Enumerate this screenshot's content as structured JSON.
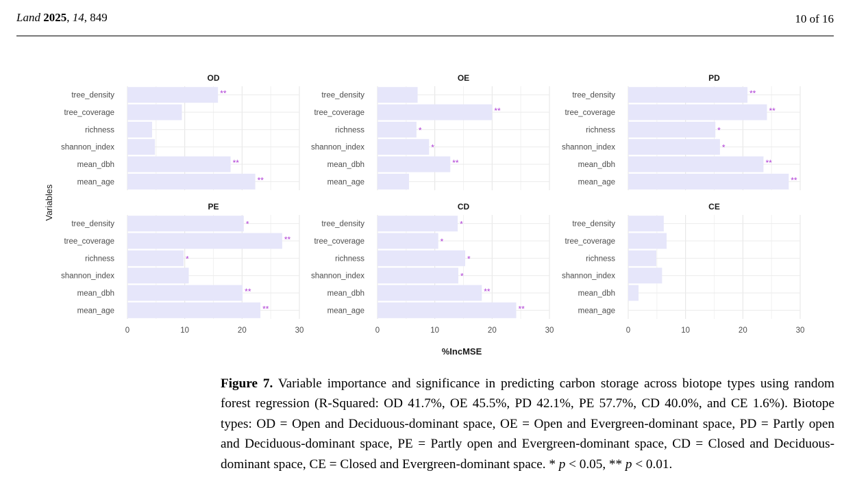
{
  "header": {
    "journal_name": "Land",
    "year": "2025",
    "volume": "14",
    "article_number": "849",
    "page": "10 of 16"
  },
  "chart_data": {
    "type": "bar",
    "orientation": "horizontal",
    "facets": true,
    "xlabel": "%IncMSE",
    "ylabel": "Variables",
    "xlim": [
      0,
      30
    ],
    "xticks": [
      0,
      10,
      20,
      30
    ],
    "categories": [
      "tree_density",
      "tree_coverage",
      "richness",
      "shannon_index",
      "mean_dbh",
      "mean_age"
    ],
    "bar_color": "#e6e6fa",
    "marker_color": "#b03fd6",
    "grid": true,
    "panels": [
      {
        "title": "OD",
        "values": [
          15.8,
          9.5,
          4.3,
          4.8,
          18.0,
          22.3
        ],
        "significance": [
          "**",
          "",
          "",
          "",
          "**",
          "**"
        ]
      },
      {
        "title": "OE",
        "values": [
          7.0,
          20.0,
          6.8,
          9.0,
          12.7,
          5.5
        ],
        "significance": [
          "",
          "**",
          "*",
          "*",
          "**",
          ""
        ]
      },
      {
        "title": "PD",
        "values": [
          20.8,
          24.2,
          15.2,
          16.0,
          23.6,
          28.0
        ],
        "significance": [
          "**",
          "**",
          "*",
          "*",
          "**",
          "**"
        ]
      },
      {
        "title": "PE",
        "values": [
          20.3,
          27.0,
          9.8,
          10.7,
          20.1,
          23.2
        ],
        "significance": [
          "*",
          "**",
          "*",
          "",
          "**",
          "**"
        ]
      },
      {
        "title": "CD",
        "values": [
          14.0,
          10.6,
          15.3,
          14.1,
          18.2,
          24.2
        ],
        "significance": [
          "*",
          "*",
          "*",
          "*",
          "**",
          "**"
        ]
      },
      {
        "title": "CE",
        "values": [
          6.2,
          6.7,
          4.9,
          5.9,
          1.8,
          0.0
        ],
        "significance": [
          "",
          "",
          "",
          "",
          "",
          ""
        ]
      }
    ]
  },
  "caption": {
    "label": "Figure 7.",
    "t1": " Variable importance and significance in predicting carbon storage across biotope types using random forest regression (R-Squared: OD 41.7%, OE 45.5%, PD 42.1%, PE 57.7%, CD 40.0%, and CE 1.6%). Biotope types: OD = Open and Deciduous-dominant space, OE = Open and Evergreen-dominant space, PD = Partly open and Deciduous-dominant space, PE = Partly open and Evergreen-dominant space, CD = Closed and Deciduous-dominant space, CE = Closed and Evergreen-dominant space. * ",
    "p1": "p",
    "t2": " < 0.05, ** ",
    "p2": "p",
    "t3": " < 0.01."
  }
}
